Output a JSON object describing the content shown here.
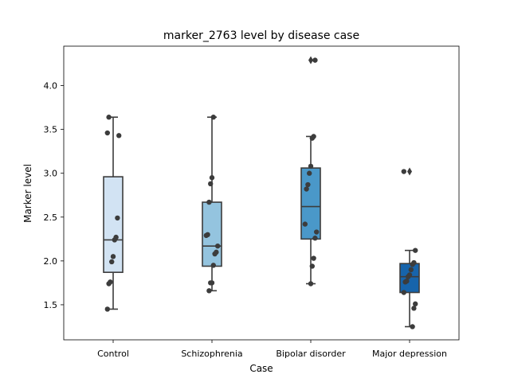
{
  "chart_data": {
    "type": "box",
    "title": "marker_2763 level by disease case",
    "xlabel": "Case",
    "ylabel": "Marker level",
    "ylim": [
      1.1,
      4.45
    ],
    "yticks": [
      1.5,
      2.0,
      2.5,
      3.0,
      3.5,
      4.0
    ],
    "ytick_labels": [
      "1.5",
      "2.0",
      "2.5",
      "3.0",
      "3.5",
      "4.0"
    ],
    "categories": [
      "Control",
      "Schizophrenia",
      "Bipolar disorder",
      "Major depression"
    ],
    "box_colors": [
      "#d2e3f3",
      "#94c4df",
      "#4a98c9",
      "#1764ab"
    ],
    "line_color": "#3c3c3c",
    "point_color": "#3c3c3c",
    "grid": false,
    "legend": "none",
    "boxes": [
      {
        "whisker_low": 1.45,
        "q1": 1.87,
        "median": 2.24,
        "q3": 2.96,
        "whisker_high": 3.64,
        "outliers": []
      },
      {
        "whisker_low": 1.66,
        "q1": 1.94,
        "median": 2.17,
        "q3": 2.67,
        "whisker_high": 3.64,
        "outliers": []
      },
      {
        "whisker_low": 1.74,
        "q1": 2.25,
        "median": 2.62,
        "q3": 3.06,
        "whisker_high": 3.42,
        "outliers": [
          4.29
        ]
      },
      {
        "whisker_low": 1.25,
        "q1": 1.64,
        "median": 1.82,
        "q3": 1.97,
        "whisker_high": 2.12,
        "outliers": [
          3.02
        ]
      }
    ],
    "points": [
      [
        1.45,
        1.74,
        1.76,
        1.99,
        2.05,
        2.24,
        2.27,
        2.49,
        3.43,
        3.46,
        3.64
      ],
      [
        1.66,
        1.75,
        1.75,
        1.95,
        2.08,
        2.1,
        2.17,
        2.29,
        2.3,
        2.67,
        2.88,
        2.95,
        3.64
      ],
      [
        1.74,
        1.94,
        2.03,
        2.26,
        2.33,
        2.42,
        2.82,
        2.87,
        3.0,
        3.08,
        3.4,
        3.42,
        4.29
      ],
      [
        1.25,
        1.46,
        1.51,
        1.64,
        1.76,
        1.77,
        1.82,
        1.84,
        1.9,
        1.96,
        1.98,
        2.12,
        3.02
      ]
    ]
  }
}
